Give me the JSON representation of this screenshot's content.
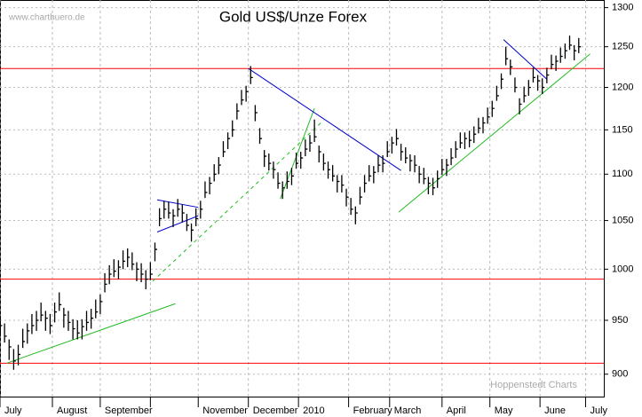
{
  "chart_data": {
    "type": "ohlc",
    "title": "Gold US$/Unze Forex",
    "source": "www.chartbuero.de",
    "credit": "Hoppenstedt Charts",
    "log_scale": true,
    "grid": true,
    "bar_color": "#000000",
    "xlim": [
      0,
      265
    ],
    "xticks": [
      {
        "value": 0,
        "label": "July"
      },
      {
        "value": 23,
        "label": "August"
      },
      {
        "value": 44,
        "label": "September"
      },
      {
        "value": 66,
        "label": null
      },
      {
        "value": 87,
        "label": "November"
      },
      {
        "value": 109,
        "label": "December"
      },
      {
        "value": 131,
        "label": "2010"
      },
      {
        "value": 153,
        "label": "February"
      },
      {
        "value": 171,
        "label": "March"
      },
      {
        "value": 194,
        "label": "April"
      },
      {
        "value": 215,
        "label": "May"
      },
      {
        "value": 237,
        "label": "June"
      },
      {
        "value": 257,
        "label": "July"
      }
    ],
    "ylim": [
      880,
      1310
    ],
    "yticks": [
      900,
      950,
      1000,
      1050,
      1100,
      1150,
      1200,
      1250,
      1300
    ],
    "x": [
      0,
      2,
      4,
      6,
      8,
      10,
      12,
      14,
      16,
      18,
      20,
      22,
      24,
      26,
      28,
      30,
      32,
      34,
      36,
      38,
      40,
      42,
      44,
      46,
      48,
      50,
      52,
      54,
      56,
      58,
      60,
      62,
      64,
      66,
      68,
      70,
      72,
      74,
      76,
      78,
      80,
      82,
      84,
      86,
      88,
      90,
      92,
      94,
      96,
      98,
      100,
      102,
      104,
      106,
      108,
      110,
      112,
      114,
      116,
      118,
      120,
      122,
      124,
      126,
      128,
      130,
      132,
      134,
      136,
      138,
      140,
      142,
      144,
      146,
      148,
      150,
      152,
      154,
      156,
      158,
      160,
      162,
      164,
      166,
      168,
      170,
      172,
      174,
      176,
      178,
      180,
      182,
      184,
      186,
      188,
      190,
      192,
      194,
      196,
      198,
      200,
      202,
      204,
      206,
      208,
      210,
      212,
      214,
      216,
      218,
      220,
      222,
      224,
      226,
      228,
      230,
      232,
      234,
      236,
      238,
      240,
      242,
      244,
      246,
      248,
      250,
      252,
      254
    ],
    "high": [
      954,
      947,
      932,
      923,
      927,
      942,
      947,
      956,
      959,
      967,
      959,
      956,
      967,
      977,
      962,
      959,
      951,
      950,
      951,
      959,
      961,
      970,
      975,
      996,
      1004,
      1010,
      1009,
      1019,
      1021,
      1017,
      1007,
      1006,
      999,
      1007,
      1027,
      1063,
      1071,
      1070,
      1062,
      1073,
      1067,
      1057,
      1047,
      1063,
      1071,
      1092,
      1097,
      1111,
      1119,
      1137,
      1147,
      1161,
      1181,
      1197,
      1202,
      1226,
      1179,
      1152,
      1127,
      1123,
      1114,
      1102,
      1092,
      1103,
      1107,
      1124,
      1125,
      1139,
      1144,
      1162,
      1132,
      1123,
      1114,
      1110,
      1099,
      1099,
      1084,
      1074,
      1065,
      1086,
      1099,
      1110,
      1109,
      1121,
      1121,
      1137,
      1142,
      1151,
      1134,
      1130,
      1122,
      1121,
      1109,
      1107,
      1097,
      1096,
      1104,
      1117,
      1117,
      1129,
      1137,
      1147,
      1147,
      1149,
      1154,
      1164,
      1165,
      1176,
      1184,
      1202,
      1217,
      1250,
      1234,
      1212,
      1187,
      1201,
      1209,
      1224,
      1215,
      1211,
      1224,
      1240,
      1239,
      1249,
      1254,
      1264,
      1252,
      1261
    ],
    "low": [
      935,
      929,
      913,
      904,
      908,
      924,
      928,
      937,
      940,
      949,
      940,
      937,
      948,
      959,
      943,
      940,
      932,
      932,
      932,
      940,
      942,
      952,
      956,
      977,
      985,
      992,
      990,
      1000,
      1002,
      999,
      988,
      987,
      980,
      989,
      1008,
      1044,
      1052,
      1052,
      1043,
      1054,
      1048,
      1039,
      1028,
      1044,
      1052,
      1074,
      1078,
      1092,
      1100,
      1119,
      1128,
      1142,
      1162,
      1179,
      1183,
      1204,
      1160,
      1134,
      1108,
      1104,
      1095,
      1084,
      1073,
      1084,
      1088,
      1106,
      1106,
      1120,
      1125,
      1136,
      1113,
      1104,
      1095,
      1092,
      1080,
      1080,
      1065,
      1056,
      1046,
      1067,
      1080,
      1092,
      1090,
      1102,
      1102,
      1119,
      1123,
      1132,
      1115,
      1112,
      1103,
      1102,
      1090,
      1089,
      1078,
      1077,
      1085,
      1099,
      1098,
      1110,
      1118,
      1129,
      1128,
      1130,
      1135,
      1146,
      1146,
      1157,
      1165,
      1184,
      1198,
      1227,
      1215,
      1194,
      1168,
      1182,
      1190,
      1206,
      1196,
      1192,
      1205,
      1222,
      1220,
      1230,
      1235,
      1246,
      1233,
      1242
    ],
    "close": [
      945,
      935,
      925,
      912,
      918,
      930,
      940,
      945,
      950,
      955,
      952,
      945,
      958,
      965,
      955,
      948,
      942,
      938,
      944,
      948,
      952,
      958,
      968,
      985,
      995,
      998,
      1002,
      1008,
      1012,
      1005,
      1000,
      995,
      990,
      995,
      1020,
      1052,
      1062,
      1058,
      1055,
      1062,
      1058,
      1045,
      1040,
      1052,
      1062,
      1080,
      1090,
      1100,
      1110,
      1125,
      1140,
      1150,
      1172,
      1185,
      1195,
      1212,
      1170,
      1140,
      1120,
      1112,
      1105,
      1090,
      1085,
      1092,
      1098,
      1112,
      1118,
      1128,
      1135,
      1142,
      1125,
      1112,
      1105,
      1098,
      1092,
      1088,
      1075,
      1062,
      1058,
      1075,
      1090,
      1098,
      1102,
      1110,
      1112,
      1125,
      1135,
      1140,
      1125,
      1118,
      1115,
      1110,
      1100,
      1095,
      1090,
      1085,
      1095,
      1105,
      1110,
      1118,
      1128,
      1135,
      1140,
      1138,
      1145,
      1152,
      1158,
      1165,
      1175,
      1190,
      1210,
      1235,
      1225,
      1200,
      1180,
      1190,
      1200,
      1212,
      1208,
      1200,
      1215,
      1228,
      1232,
      1238,
      1245,
      1252,
      1245,
      1250
    ],
    "hlines": [
      {
        "value": 1223,
        "color": "#ff0000"
      },
      {
        "value": 990,
        "color": "#ff0000"
      },
      {
        "value": 910,
        "color": "#ff0000"
      }
    ],
    "trendlines": [
      {
        "color": "#22bb22",
        "dashed": false,
        "points": [
          [
            3,
            910
          ],
          [
            77,
            966
          ]
        ]
      },
      {
        "color": "#22bb22",
        "dashed": true,
        "points": [
          [
            67,
            988
          ],
          [
            142,
            1161
          ]
        ]
      },
      {
        "color": "#22bb22",
        "dashed": false,
        "points": [
          [
            123,
            1073
          ],
          [
            138,
            1175
          ]
        ]
      },
      {
        "color": "#22bb22",
        "dashed": false,
        "points": [
          [
            175,
            1059
          ],
          [
            259,
            1241
          ]
        ]
      },
      {
        "color": "#0000cc",
        "dashed": false,
        "points": [
          [
            109,
            1223
          ],
          [
            176,
            1104
          ]
        ]
      },
      {
        "color": "#0000cc",
        "dashed": false,
        "points": [
          [
            69,
            1072
          ],
          [
            87,
            1064
          ]
        ]
      },
      {
        "color": "#0000cc",
        "dashed": false,
        "points": [
          [
            69,
            1038
          ],
          [
            87,
            1055
          ]
        ]
      },
      {
        "color": "#0000cc",
        "dashed": false,
        "points": [
          [
            221,
            1259
          ],
          [
            240,
            1210
          ]
        ]
      }
    ]
  }
}
